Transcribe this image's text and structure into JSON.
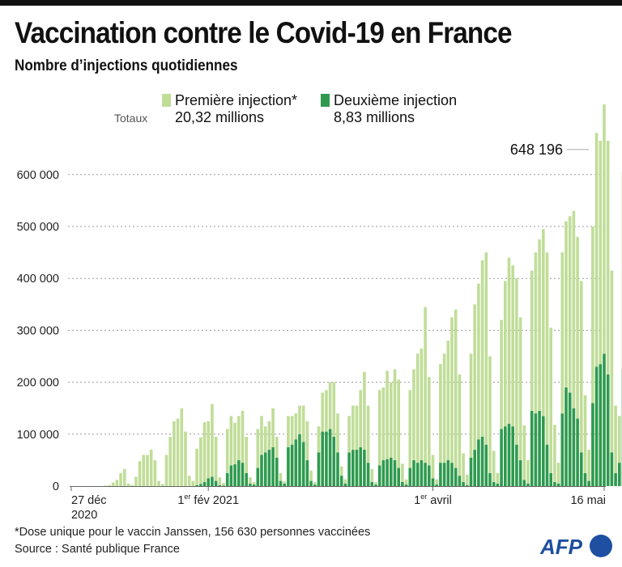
{
  "header": {
    "title": "Vaccination contre le Covid-19 en France",
    "subtitle": "Nombre d’injections quotidiennes"
  },
  "legend": {
    "totaux_label": "Totaux",
    "items": [
      {
        "label": "Première injection*",
        "total": "20,32 millions",
        "color": "#c0dd98"
      },
      {
        "label": "Deuxième injection",
        "total": "8,83 millions",
        "color": "#2e9a4e"
      }
    ]
  },
  "footer": {
    "footnote": "*Dose unique pour le vaccin Janssen, 156 630 personnes vaccinées",
    "source": "Source : Santé publique France",
    "logo_text": "AFP",
    "logo_color": "#1e4fa0"
  },
  "chart_data": {
    "type": "bar",
    "stacked": true,
    "title": "Vaccination contre le Covid-19 en France",
    "subtitle": "Nombre d’injections quotidiennes",
    "xlabel": "",
    "ylabel": "",
    "x_start": "2020-12-27",
    "x_end": "2021-05-16",
    "ylim": [
      0,
      650000
    ],
    "yticks": [
      0,
      100000,
      200000,
      300000,
      400000,
      500000,
      600000
    ],
    "ytick_labels": [
      "0",
      "100 000",
      "200 000",
      "300 000",
      "400 000",
      "500 000",
      "600 000"
    ],
    "grid": true,
    "xticks": [
      {
        "day": 0,
        "label": "27 déc",
        "label2": "2020",
        "sup": ""
      },
      {
        "day": 36,
        "label": "1",
        "sup": "er",
        "rest": " fév 2021",
        "label2": ""
      },
      {
        "day": 95,
        "label": "1",
        "sup": "er",
        "rest": " avril",
        "label2": ""
      },
      {
        "day": 140,
        "label": "16 mai",
        "sup": "",
        "label2": ""
      }
    ],
    "annotation": {
      "text": "648 196",
      "day": 136,
      "value": 648196
    },
    "legend_position": "top-left",
    "series": [
      {
        "name": "Première injection*",
        "color": "#c0dd98",
        "values": [
          0,
          0,
          0,
          0,
          0,
          0,
          0,
          0,
          0,
          1000,
          2000,
          7000,
          12000,
          25000,
          33000,
          5000,
          2000,
          18000,
          48000,
          60000,
          60000,
          70000,
          50000,
          10000,
          4000,
          60000,
          95000,
          125000,
          130000,
          150000,
          105000,
          20000,
          10000,
          70000,
          90000,
          115000,
          110000,
          140000,
          85000,
          15000,
          5000,
          85000,
          95000,
          80000,
          85000,
          100000,
          70000,
          12000,
          5000,
          75000,
          75000,
          50000,
          55000,
          75000,
          40000,
          15000,
          4000,
          60000,
          55000,
          50000,
          55000,
          70000,
          75000,
          20000,
          5000,
          50000,
          75000,
          80000,
          90000,
          105000,
          75000,
          18000,
          8000,
          70000,
          85000,
          85000,
          110000,
          150000,
          110000,
          25000,
          5000,
          145000,
          140000,
          170000,
          145000,
          175000,
          170000,
          35000,
          10000,
          150000,
          175000,
          210000,
          215000,
          300000,
          170000,
          45000,
          10000,
          190000,
          210000,
          230000,
          280000,
          305000,
          195000,
          55000,
          20000,
          200000,
          280000,
          300000,
          340000,
          370000,
          225000,
          60000,
          20000,
          210000,
          280000,
          320000,
          310000,
          320000,
          275000,
          105000,
          45000,
          270000,
          310000,
          330000,
          360000,
          370000,
          280000,
          110000,
          40000,
          310000,
          320000,
          340000,
          380000,
          350000,
          330000,
          150000,
          60000,
          340000,
          450000,
          430000,
          480000,
          450000,
          350000,
          130000,
          90000,
          380000,
          350000,
          400000,
          390000,
          355000,
          430000,
          120000
        ]
      },
      {
        "name": "Deuxième injection",
        "color": "#2e9a4e",
        "values": [
          0,
          0,
          0,
          0,
          0,
          0,
          0,
          0,
          0,
          0,
          0,
          0,
          0,
          0,
          0,
          0,
          0,
          0,
          0,
          0,
          0,
          0,
          0,
          0,
          0,
          0,
          0,
          0,
          0,
          0,
          0,
          0,
          0,
          2000,
          4000,
          8000,
          15000,
          18000,
          10000,
          2000,
          1000,
          25000,
          40000,
          42000,
          50000,
          45000,
          25000,
          5000,
          3000,
          35000,
          60000,
          65000,
          70000,
          75000,
          55000,
          10000,
          5000,
          75000,
          80000,
          90000,
          100000,
          85000,
          50000,
          10000,
          3000,
          65000,
          105000,
          105000,
          110000,
          95000,
          65000,
          20000,
          5000,
          65000,
          70000,
          70000,
          75000,
          70000,
          45000,
          8000,
          3000,
          40000,
          50000,
          52000,
          55000,
          50000,
          35000,
          8000,
          3000,
          35000,
          50000,
          45000,
          50000,
          45000,
          40000,
          15000,
          3000,
          45000,
          45000,
          50000,
          45000,
          35000,
          20000,
          8000,
          2000,
          55000,
          70000,
          90000,
          95000,
          80000,
          25000,
          8000,
          5000,
          110000,
          115000,
          120000,
          115000,
          80000,
          50000,
          12000,
          5000,
          145000,
          140000,
          145000,
          135000,
          80000,
          25000,
          8000,
          5000,
          140000,
          190000,
          180000,
          150000,
          130000,
          65000,
          25000,
          10000,
          160000,
          230000,
          235000,
          255000,
          215000,
          65000,
          25000,
          45000,
          225000,
          265000,
          235000,
          110000,
          130000,
          20000
        ]
      }
    ]
  }
}
